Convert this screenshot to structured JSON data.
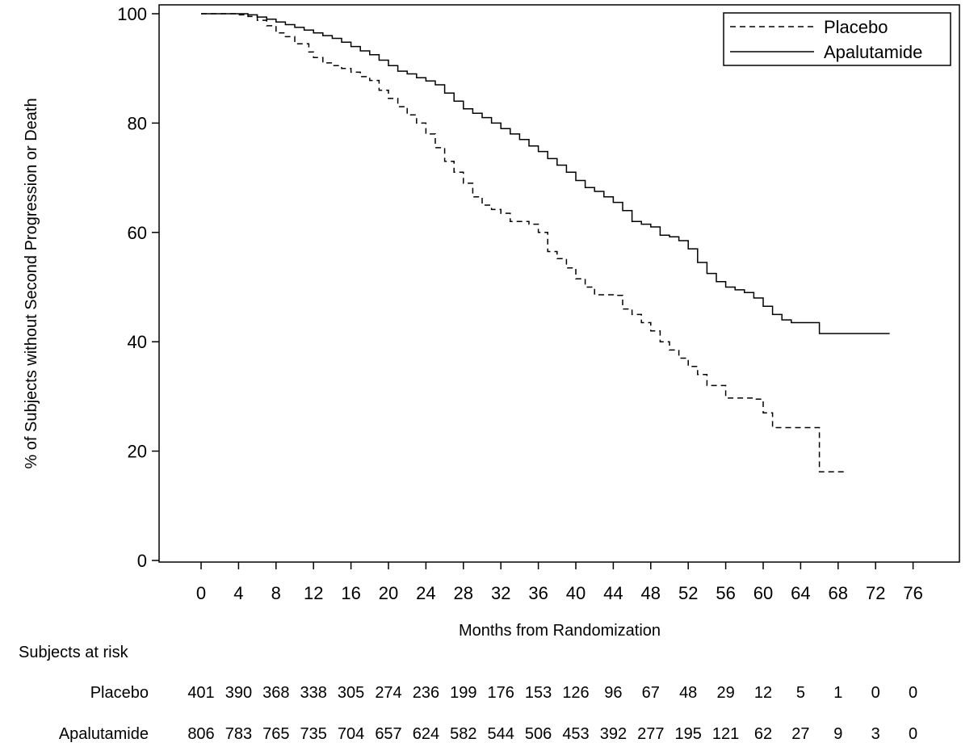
{
  "chart_data": {
    "type": "line",
    "title": "",
    "xlabel": "Months from Randomization",
    "ylabel": "% of Subjects without Second Progression or Death",
    "xlim": [
      -4,
      80
    ],
    "ylim": [
      0,
      102
    ],
    "x_ticks": [
      0,
      4,
      8,
      12,
      16,
      20,
      24,
      28,
      32,
      36,
      40,
      44,
      48,
      52,
      56,
      60,
      64,
      68,
      72,
      76
    ],
    "y_ticks": [
      0,
      20,
      40,
      60,
      80,
      100
    ],
    "grid": false,
    "legend_position": "top-right",
    "series": [
      {
        "name": "Placebo",
        "style": "dashed",
        "color": "#000000",
        "steps": [
          [
            0,
            100
          ],
          [
            4,
            99.8
          ],
          [
            5,
            99.5
          ],
          [
            6,
            98.8
          ],
          [
            7,
            97.8
          ],
          [
            8,
            96.5
          ],
          [
            9,
            95.8
          ],
          [
            10,
            94.5
          ],
          [
            11.5,
            93
          ],
          [
            12,
            92
          ],
          [
            13,
            91
          ],
          [
            14,
            90.5
          ],
          [
            15,
            90
          ],
          [
            16,
            89.3
          ],
          [
            17,
            88.5
          ],
          [
            18,
            87.8
          ],
          [
            19,
            86
          ],
          [
            20,
            84.5
          ],
          [
            21,
            83
          ],
          [
            22,
            81.5
          ],
          [
            23,
            80
          ],
          [
            24,
            78
          ],
          [
            25,
            75.5
          ],
          [
            26,
            73
          ],
          [
            27,
            71
          ],
          [
            28,
            69
          ],
          [
            29,
            66.5
          ],
          [
            30,
            65
          ],
          [
            31,
            64.2
          ],
          [
            32,
            63.5
          ],
          [
            33,
            62
          ],
          [
            35,
            61.5
          ],
          [
            36,
            60
          ],
          [
            37,
            56.5
          ],
          [
            38,
            55.2
          ],
          [
            39,
            53.5
          ],
          [
            40,
            51.5
          ],
          [
            41,
            50
          ],
          [
            42,
            48.6
          ],
          [
            44,
            48.5
          ],
          [
            45,
            46
          ],
          [
            46,
            45
          ],
          [
            47,
            43.5
          ],
          [
            48,
            42
          ],
          [
            49,
            40
          ],
          [
            50,
            38.5
          ],
          [
            51,
            37
          ],
          [
            52,
            35.5
          ],
          [
            53,
            34
          ],
          [
            54,
            32
          ],
          [
            56,
            29.7
          ],
          [
            59,
            29.5
          ],
          [
            60,
            27
          ],
          [
            61,
            24.3
          ],
          [
            65,
            24.3
          ],
          [
            66,
            16.2
          ],
          [
            69,
            16.2
          ]
        ]
      },
      {
        "name": "Apalutamide",
        "style": "solid",
        "color": "#000000",
        "steps": [
          [
            0,
            100
          ],
          [
            4,
            100
          ],
          [
            5,
            99.8
          ],
          [
            6,
            99.4
          ],
          [
            7,
            99
          ],
          [
            8,
            98.5
          ],
          [
            9,
            98
          ],
          [
            10,
            97.5
          ],
          [
            11,
            97
          ],
          [
            12,
            96.5
          ],
          [
            13,
            96
          ],
          [
            14,
            95.5
          ],
          [
            15,
            94.8
          ],
          [
            16,
            94
          ],
          [
            17,
            93.2
          ],
          [
            18,
            92.5
          ],
          [
            19,
            91.5
          ],
          [
            20,
            90.5
          ],
          [
            21,
            89.5
          ],
          [
            22,
            89
          ],
          [
            23,
            88.3
          ],
          [
            24,
            87.7
          ],
          [
            25,
            87
          ],
          [
            26,
            85.5
          ],
          [
            27,
            84
          ],
          [
            28,
            82.6
          ],
          [
            29,
            81.8
          ],
          [
            30,
            81
          ],
          [
            31,
            80
          ],
          [
            32,
            79
          ],
          [
            33,
            78
          ],
          [
            34,
            77
          ],
          [
            35,
            75.8
          ],
          [
            36,
            74.8
          ],
          [
            37,
            73.5
          ],
          [
            38,
            72.3
          ],
          [
            39,
            71
          ],
          [
            40,
            69.5
          ],
          [
            41,
            68.2
          ],
          [
            42,
            67.5
          ],
          [
            43,
            66.5
          ],
          [
            44,
            65.5
          ],
          [
            45,
            64
          ],
          [
            46,
            62
          ],
          [
            47,
            61.5
          ],
          [
            48,
            61
          ],
          [
            49,
            59.5
          ],
          [
            50,
            59.2
          ],
          [
            51,
            58.5
          ],
          [
            52,
            57
          ],
          [
            53,
            54.5
          ],
          [
            54,
            52.5
          ],
          [
            55,
            51
          ],
          [
            56,
            50
          ],
          [
            57,
            49.5
          ],
          [
            58,
            49
          ],
          [
            59,
            48
          ],
          [
            60,
            46.5
          ],
          [
            61,
            45
          ],
          [
            62,
            44
          ],
          [
            63,
            43.5
          ],
          [
            66,
            41.5
          ],
          [
            73.5,
            41.5
          ]
        ]
      }
    ],
    "at_risk": {
      "title": "Subjects at risk",
      "times": [
        0,
        4,
        8,
        12,
        16,
        20,
        24,
        28,
        32,
        36,
        40,
        44,
        48,
        52,
        56,
        60,
        64,
        68,
        72,
        76
      ],
      "rows": [
        {
          "label": "Placebo",
          "values": [
            "401",
            "390",
            "368",
            "338",
            "305",
            "274",
            "236",
            "199",
            "176",
            "153",
            "126",
            "96",
            "67",
            "48",
            "29",
            "12",
            "5",
            "1",
            "0",
            "0"
          ]
        },
        {
          "label": "Apalutamide",
          "values": [
            "806",
            "783",
            "765",
            "735",
            "704",
            "657",
            "624",
            "582",
            "544",
            "506",
            "453",
            "392",
            "277",
            "195",
            "121",
            "62",
            "27",
            "9",
            "3",
            "0"
          ]
        }
      ]
    }
  }
}
